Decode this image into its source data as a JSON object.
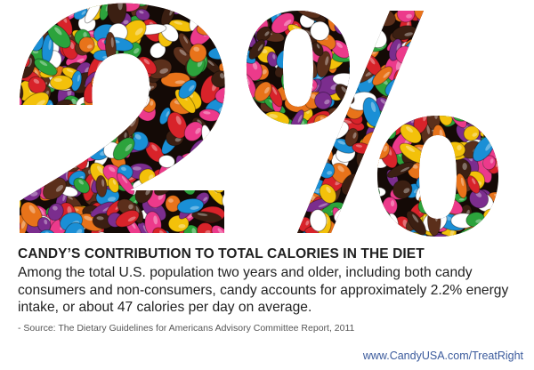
{
  "hero": {
    "statistic": "2%",
    "palette": {
      "candy_colors": [
        "#d8232a",
        "#f3c10a",
        "#1a8fd6",
        "#2ca33c",
        "#e8731a",
        "#7b2d8e",
        "#5b2f1b",
        "#ec3a8b",
        "#ffffff",
        "#3b1f12"
      ],
      "background": "#140a06",
      "page": "#ffffff"
    }
  },
  "headline": "CANDY’S CONTRIBUTION TO TOTAL CALORIES IN THE DIET",
  "body": "Among the total U.S. population two years and older, including both candy consumers and non-consumers, candy accounts for approximately 2.2% energy intake, or about 47 calories per day on average.",
  "source": "- Source: The Dietary Guidelines for Americans Advisory Committee Report, 2011",
  "url": "www.CandyUSA.com/TreatRight"
}
